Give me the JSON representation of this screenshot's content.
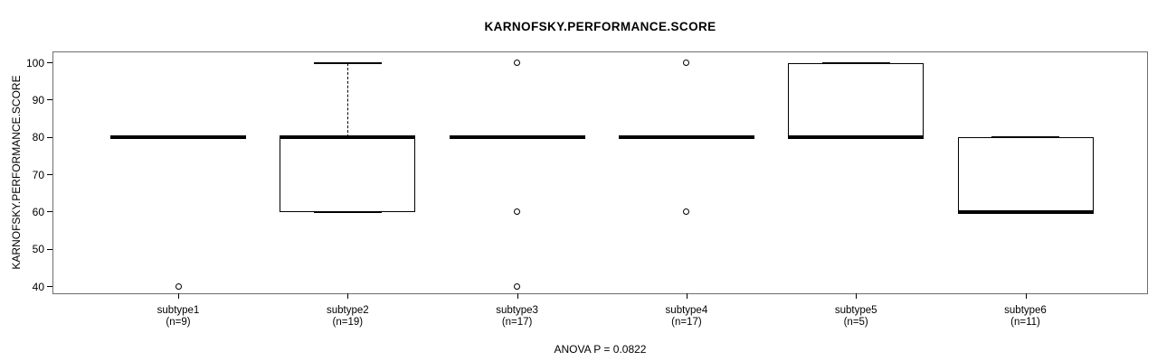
{
  "title": "KARNOFSKY.PERFORMANCE.SCORE",
  "footer": "ANOVA P = 0.0822",
  "chart_data": {
    "type": "boxplot",
    "title": "KARNOFSKY.PERFORMANCE.SCORE",
    "ylabel": "KARNOFSKY.PERFORMANCE.SCORE",
    "annotation": "ANOVA P = 0.0822",
    "ylim": [
      40,
      100
    ],
    "y_ticks": [
      40,
      50,
      60,
      70,
      80,
      90,
      100
    ],
    "grid": false,
    "legend": "none",
    "groups": [
      {
        "label": "subtype1",
        "sublabel": "(n=9)",
        "n": 9,
        "q1": 80,
        "median": 80,
        "q3": 80,
        "whisker_low": 80,
        "whisker_high": 80,
        "outliers": [
          40
        ]
      },
      {
        "label": "subtype2",
        "sublabel": "(n=19)",
        "n": 19,
        "q1": 60,
        "median": 80,
        "q3": 80,
        "whisker_low": 60,
        "whisker_high": 100,
        "outliers": []
      },
      {
        "label": "subtype3",
        "sublabel": "(n=17)",
        "n": 17,
        "q1": 80,
        "median": 80,
        "q3": 80,
        "whisker_low": 80,
        "whisker_high": 80,
        "outliers": [
          100,
          60,
          40
        ]
      },
      {
        "label": "subtype4",
        "sublabel": "(n=17)",
        "n": 17,
        "q1": 80,
        "median": 80,
        "q3": 80,
        "whisker_low": 80,
        "whisker_high": 80,
        "outliers": [
          100,
          60
        ]
      },
      {
        "label": "subtype5",
        "sublabel": "(n=5)",
        "n": 5,
        "q1": 80,
        "median": 80,
        "q3": 100,
        "whisker_low": 80,
        "whisker_high": 100,
        "outliers": []
      },
      {
        "label": "subtype6",
        "sublabel": "(n=11)",
        "n": 11,
        "q1": 60,
        "median": 60,
        "q3": 80,
        "whisker_low": 60,
        "whisker_high": 80,
        "outliers": []
      }
    ],
    "colors": {
      "box_border": "#000000",
      "median": "#000000",
      "frame": "#6e6e6e",
      "background": "#ffffff"
    }
  }
}
